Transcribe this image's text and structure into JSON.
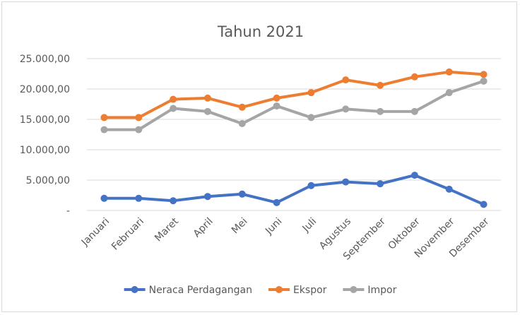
{
  "chart_data": {
    "type": "line",
    "title": "Tahun 2021",
    "categories": [
      "Januari",
      "Februari",
      "Maret",
      "April",
      "Mei",
      "Juni",
      "Juli",
      "Agustus",
      "September",
      "Oktober",
      "November",
      "Desember"
    ],
    "y_tick_labels": [
      "-",
      "5.000,00",
      "10.000,00",
      "15.000,00",
      "20.000,00",
      "25.000,00"
    ],
    "ylim": [
      0,
      25000
    ],
    "grid": true,
    "legend_position": "bottom",
    "series": [
      {
        "name": "Neraca Perdagangan",
        "color": "#4472c4",
        "values": [
          2000,
          2000,
          1600,
          2300,
          2700,
          1300,
          4100,
          4700,
          4400,
          5800,
          3500,
          1000
        ]
      },
      {
        "name": "Ekspor",
        "color": "#ed7d31",
        "values": [
          15300,
          15300,
          18300,
          18500,
          17000,
          18500,
          19400,
          21500,
          20600,
          22000,
          22800,
          22400
        ]
      },
      {
        "name": "Impor",
        "color": "#a5a5a5",
        "values": [
          13300,
          13300,
          16800,
          16300,
          14300,
          17200,
          15300,
          16700,
          16300,
          16300,
          19400,
          21300
        ]
      }
    ]
  }
}
